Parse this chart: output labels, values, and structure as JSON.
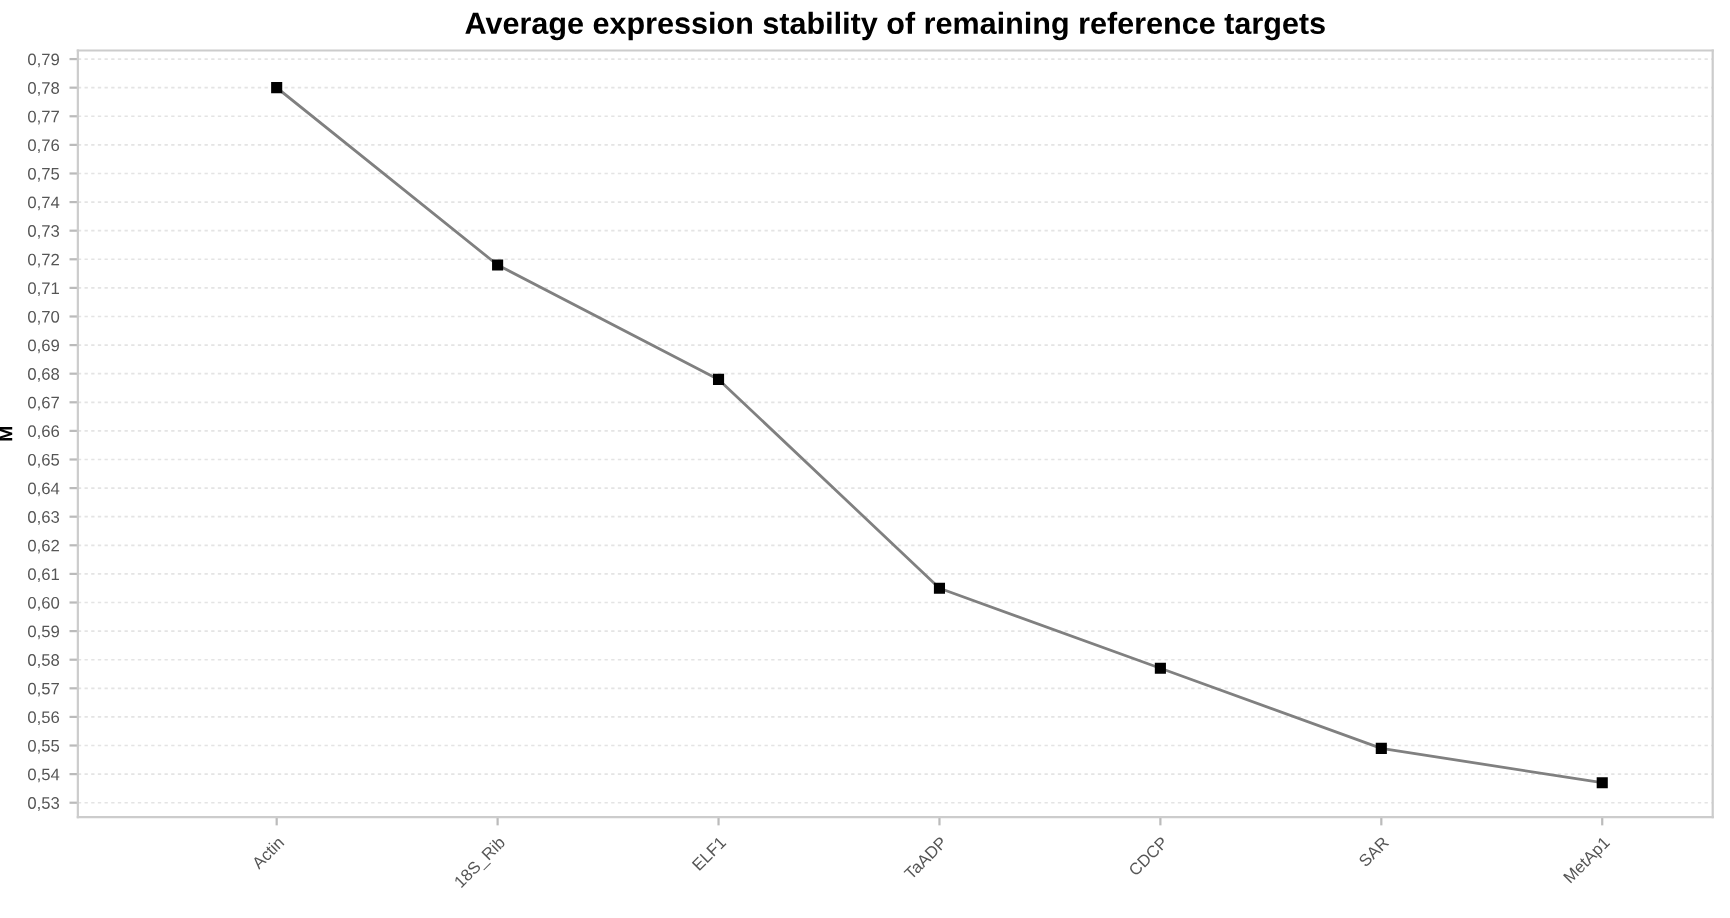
{
  "chart_data": {
    "type": "line",
    "title": "Average expression stability of remaining reference targets",
    "ylabel": "M",
    "categories": [
      "Actin",
      "18S_Rib",
      "ELF1",
      "TaADP",
      "CDCP",
      "SAR",
      "MetAp1"
    ],
    "series": [
      {
        "color": "#808080",
        "values": [
          0.78,
          0.718,
          0.678,
          0.605,
          0.577,
          0.549,
          0.537
        ]
      }
    ],
    "ylim": [
      0.525,
      0.793
    ],
    "yticks": [
      {
        "value": 0.53,
        "label": "0,53"
      },
      {
        "value": 0.54,
        "label": "0,54"
      },
      {
        "value": 0.55,
        "label": "0,55"
      },
      {
        "value": 0.56,
        "label": "0,56"
      },
      {
        "value": 0.57,
        "label": "0,57"
      },
      {
        "value": 0.58,
        "label": "0,58"
      },
      {
        "value": 0.59,
        "label": "0,59"
      },
      {
        "value": 0.6,
        "label": "0,60"
      },
      {
        "value": 0.61,
        "label": "0,61"
      },
      {
        "value": 0.62,
        "label": "0,62"
      },
      {
        "value": 0.63,
        "label": "0,63"
      },
      {
        "value": 0.64,
        "label": "0,64"
      },
      {
        "value": 0.65,
        "label": "0,65"
      },
      {
        "value": 0.66,
        "label": "0,66"
      },
      {
        "value": 0.67,
        "label": "0,67"
      },
      {
        "value": 0.68,
        "label": "0,68"
      },
      {
        "value": 0.69,
        "label": "0,69"
      },
      {
        "value": 0.7,
        "label": "0,70"
      },
      {
        "value": 0.71,
        "label": "0,71"
      },
      {
        "value": 0.72,
        "label": "0,72"
      },
      {
        "value": 0.73,
        "label": "0,73"
      },
      {
        "value": 0.74,
        "label": "0,74"
      },
      {
        "value": 0.75,
        "label": "0,75"
      },
      {
        "value": 0.76,
        "label": "0,76"
      },
      {
        "value": 0.77,
        "label": "0,77"
      },
      {
        "value": 0.78,
        "label": "0,78"
      },
      {
        "value": 0.79,
        "label": "0,79"
      }
    ],
    "grid": "y",
    "marker": "square",
    "line_style": "solid"
  }
}
